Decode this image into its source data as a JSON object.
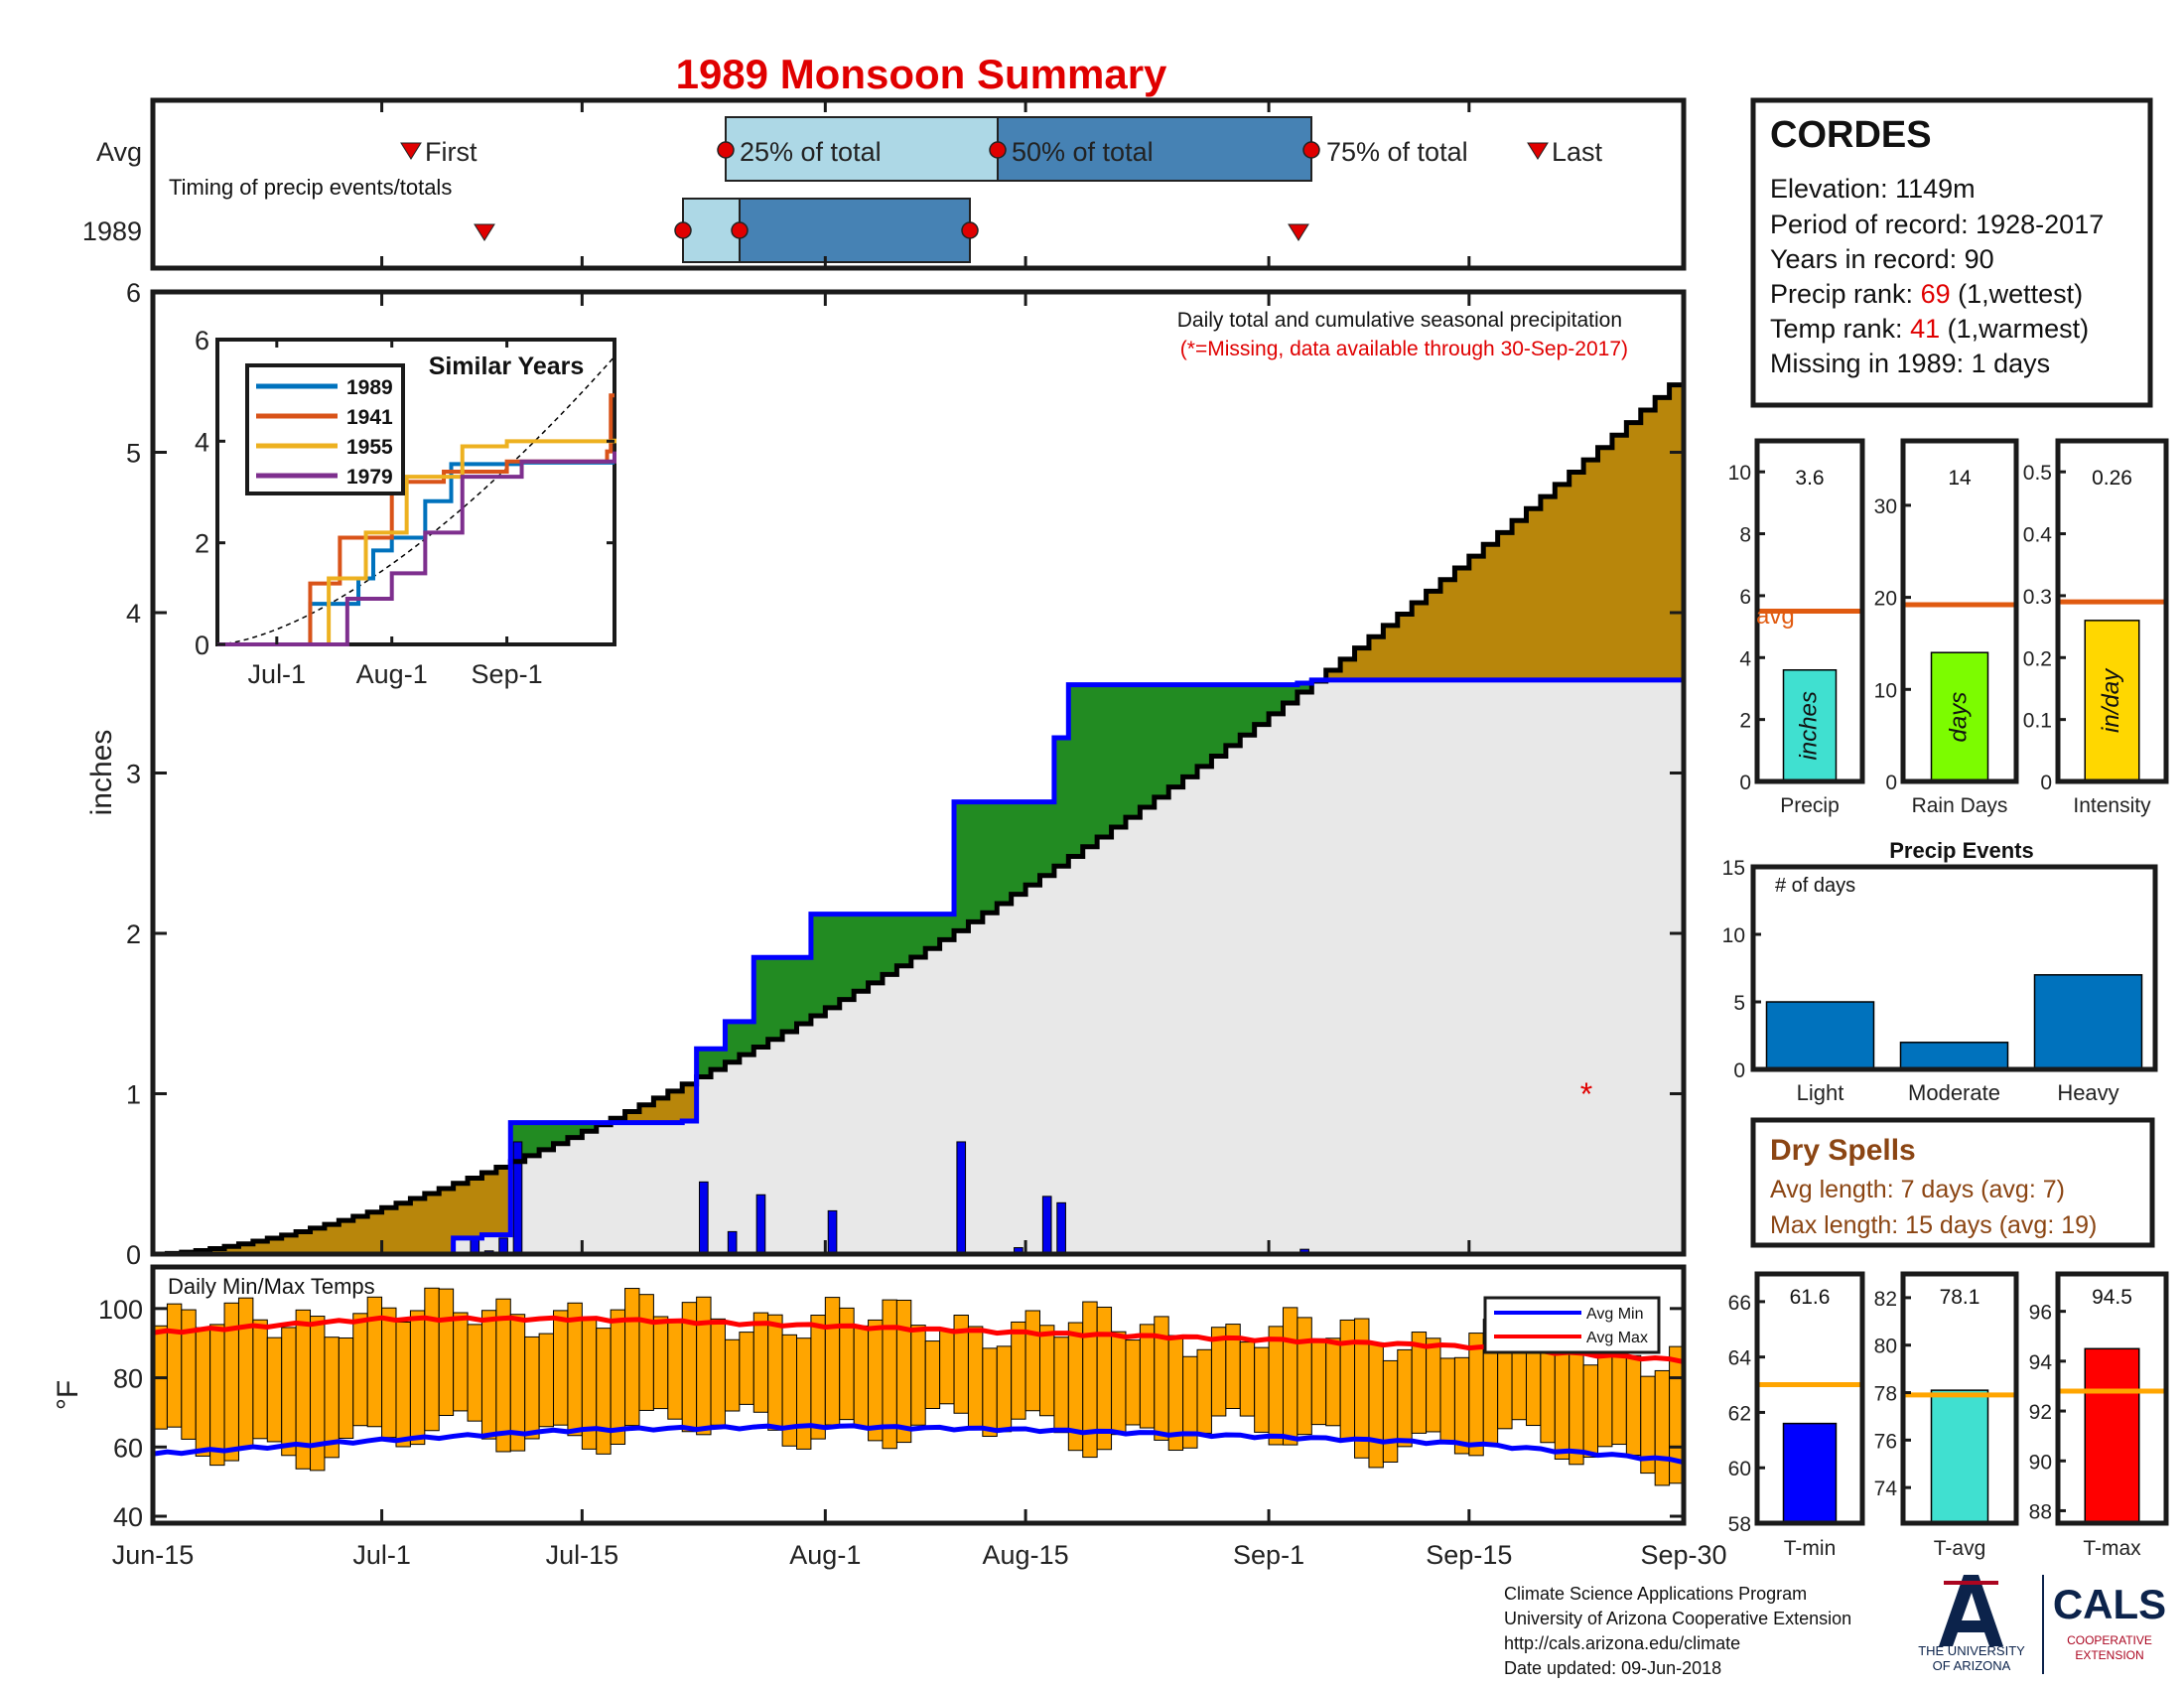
{
  "title": "1989 Monsoon Summary",
  "timing": {
    "rows": [
      "Avg",
      "1989"
    ],
    "note": "Timing of precip events/totals",
    "labels": {
      "first": "First",
      "p25": "25% of total",
      "p50": "50% of total",
      "p75": "75% of total",
      "last": "Last"
    },
    "colors": {
      "light": "#add8e6",
      "dark": "#4682b4",
      "marker": "#e00000"
    }
  },
  "station": {
    "name": "CORDES",
    "elevation_label": "Elevation: ",
    "elevation": "1149m",
    "period_label": "Period of record: ",
    "period": "1928-2017",
    "years_label": "Years in record: ",
    "years": "90",
    "precip_rank_label": "Precip rank: ",
    "precip_rank": "69",
    "precip_rank_note": " (1,wettest)",
    "temp_rank_label": "Temp rank: ",
    "temp_rank": "41",
    "temp_rank_note": " (1,warmest)",
    "missing_label": "Missing in 1989: ",
    "missing": "1 days"
  },
  "main": {
    "ylabel": "inches",
    "note1": "Daily total and cumulative seasonal precipitation",
    "note2": "(*=Missing, data available through 30-Sep-2017)",
    "missing_marker": "*"
  },
  "inset": {
    "title": "Similar Years",
    "legend": [
      {
        "name": "1989",
        "color": "#0072bd"
      },
      {
        "name": "1941",
        "color": "#d95319"
      },
      {
        "name": "1955",
        "color": "#edb120"
      },
      {
        "name": "1979",
        "color": "#7e2f8e"
      }
    ]
  },
  "summary": {
    "avg_label": "avg",
    "precip": {
      "name": "Precip",
      "value_text": "3.6",
      "unit": "inches",
      "color": "#40e0d0"
    },
    "raindays": {
      "name": "Rain Days",
      "value_text": "14",
      "unit": "days",
      "color": "#7cfc00"
    },
    "intensity": {
      "name": "Intensity",
      "value_text": "0.26",
      "unit": "in/day",
      "color": "#ffd700"
    }
  },
  "events": {
    "title": "Precip Events",
    "ylabel": "# of days",
    "color": "#0072bd"
  },
  "dry": {
    "title": "Dry Spells",
    "avg": "Avg length: 7 days (avg: 7)",
    "max": "Max length: 15 days (avg: 19)",
    "color": "#8b4513"
  },
  "temps": {
    "title": "Daily Min/Max Temps",
    "ylabel": "°F",
    "legend": [
      {
        "name": "Avg Min",
        "color": "#0000ff"
      },
      {
        "name": "Avg Max",
        "color": "#ff0000"
      }
    ],
    "bar_color": "#ffa500"
  },
  "tsum": {
    "tmin": {
      "name": "T-min",
      "value_text": "61.6",
      "color": "#0000ff"
    },
    "tavg": {
      "name": "T-avg",
      "value_text": "78.1",
      "color": "#40e0d0"
    },
    "tmax": {
      "name": "T-max",
      "value_text": "94.5",
      "color": "#ff0000"
    },
    "avg_color": "#ffa500"
  },
  "footer": {
    "line1": "Climate Science Applications Program",
    "line2": "University of Arizona Cooperative Extension",
    "line3": "http://cals.arizona.edu/climate",
    "line4": " Date updated: 09-Jun-2018",
    "ua1": "THE UNIVERSITY",
    "ua2": "OF ARIZONA",
    "cals": "CALS",
    "cals_sub1": "COOPERATIVE",
    "cals_sub2": "EXTENSION"
  },
  "chart_data": [
    {
      "type": "line",
      "title": "Daily total and cumulative seasonal precipitation",
      "ylabel": "inches",
      "xlim": [
        "Jun-15",
        "Sep-30"
      ],
      "ylim": [
        0,
        6
      ],
      "x_ticks": [
        "Jun-15",
        "Jul-1",
        "Jul-15",
        "Aug-1",
        "Aug-15",
        "Sep-1",
        "Sep-15",
        "Sep-30"
      ],
      "y_ticks": [
        0,
        1,
        2,
        3,
        4,
        5,
        6
      ],
      "series": [
        {
          "name": "1989",
          "color": "#0000ff",
          "x": [
            "Jun-15",
            "Jul-5",
            "Jul-6",
            "Jul-7",
            "Jul-8",
            "Jul-9",
            "Jul-10",
            "Jul-11",
            "Jul-20",
            "Jul-21",
            "Jul-22",
            "Jul-23",
            "Jul-24",
            "Jul-25",
            "Jul-26",
            "Jul-27",
            "Jul-30",
            "Jul-31",
            "Aug-1",
            "Aug-2",
            "Aug-9",
            "Aug-10",
            "Aug-16",
            "Aug-17",
            "Aug-18",
            "Aug-19",
            "Sep-3",
            "Sep-4",
            "Sep-30"
          ],
          "y": [
            0,
            0,
            0.1,
            0.1,
            0.12,
            0.12,
            0.82,
            0.82,
            0.82,
            0.82,
            0.83,
            1.28,
            1.28,
            1.45,
            1.45,
            1.85,
            1.85,
            2.12,
            2.12,
            2.12,
            2.12,
            2.82,
            2.82,
            3.22,
            3.55,
            3.55,
            3.56,
            3.58,
            3.58
          ]
        }
      ],
      "daily_bars": {
        "x": [
          "Jul-7",
          "Jul-8",
          "Jul-9",
          "Jul-10",
          "Jul-23",
          "Jul-25",
          "Jul-27",
          "Aug-1",
          "Aug-10",
          "Aug-14",
          "Aug-16",
          "Aug-17",
          "Sep-3"
        ],
        "y": [
          0.1,
          0.02,
          0.1,
          0.7,
          0.45,
          0.14,
          0.37,
          0.27,
          0.7,
          0.04,
          0.36,
          0.32,
          0.03
        ]
      }
    },
    {
      "type": "line",
      "title": "Similar Years",
      "x_ticks": [
        "Jul-1",
        "Aug-1",
        "Sep-1"
      ],
      "y_ticks": [
        0,
        2,
        4,
        6
      ],
      "series": [
        {
          "name": "1989",
          "x": [
            "Jun-15",
            "Jul-5",
            "Jul-10",
            "Jul-23",
            "Jul-27",
            "Aug-1",
            "Aug-10",
            "Aug-17",
            "Sep-4",
            "Sep-30"
          ],
          "y": [
            0,
            0,
            0.8,
            1.3,
            1.85,
            2.1,
            2.82,
            3.55,
            3.58,
            3.58
          ]
        },
        {
          "name": "1941",
          "x": [
            "Jun-15",
            "Jul-3",
            "Jul-10",
            "Jul-18",
            "Aug-1",
            "Aug-15",
            "Sep-1",
            "Sep-28",
            "Sep-29",
            "Sep-30"
          ],
          "y": [
            0,
            0,
            1.2,
            2.1,
            3.2,
            3.4,
            3.6,
            3.8,
            4.9,
            4.9
          ]
        },
        {
          "name": "1955",
          "x": [
            "Jun-15",
            "Jul-8",
            "Jul-15",
            "Jul-25",
            "Aug-5",
            "Aug-20",
            "Sep-1",
            "Sep-30"
          ],
          "y": [
            0,
            0,
            1.3,
            2.2,
            3.3,
            3.9,
            4.0,
            4.05
          ]
        },
        {
          "name": "1979",
          "x": [
            "Jun-15",
            "Jul-12",
            "Jul-20",
            "Aug-1",
            "Aug-10",
            "Aug-20",
            "Sep-5",
            "Sep-30"
          ],
          "y": [
            0,
            0,
            0.9,
            1.4,
            2.2,
            3.3,
            3.6,
            3.8
          ]
        }
      ]
    },
    {
      "type": "bar",
      "title": "Precip Events",
      "ylabel": "# of days",
      "categories": [
        "Light",
        "Moderate",
        "Heavy"
      ],
      "values": [
        5,
        2,
        7
      ],
      "ylim": [
        0,
        15
      ]
    },
    {
      "type": "bar",
      "categories": [
        "Precip",
        "Rain Days",
        "Intensity"
      ],
      "series": [
        {
          "name": "1989",
          "values": [
            3.6,
            14,
            0.26
          ]
        },
        {
          "name": "avg",
          "values": [
            5.5,
            19.2,
            0.29
          ]
        }
      ],
      "ylims": [
        [
          0,
          11
        ],
        [
          0,
          37
        ],
        [
          0,
          0.55
        ]
      ]
    },
    {
      "type": "bar",
      "title": "Daily Min/Max Temps",
      "ylabel": "°F",
      "ylim": [
        38,
        112
      ],
      "y_ticks": [
        40,
        60,
        80,
        100
      ],
      "avg_min": {
        "x": [
          "Jun-15",
          "Jul-1",
          "Jul-15",
          "Aug-1",
          "Aug-15",
          "Sep-1",
          "Sep-15",
          "Sep-30"
        ],
        "y": [
          58,
          62,
          65,
          66,
          65,
          63,
          61,
          56
        ]
      },
      "avg_max": {
        "x": [
          "Jun-15",
          "Jul-1",
          "Jul-15",
          "Aug-1",
          "Aug-15",
          "Sep-1",
          "Sep-15",
          "Sep-30"
        ],
        "y": [
          93,
          97,
          97,
          95,
          93,
          91,
          89,
          85
        ]
      }
    },
    {
      "type": "bar",
      "categories": [
        "T-min",
        "T-avg",
        "T-max"
      ],
      "series": [
        {
          "name": "1989",
          "values": [
            61.6,
            78.1,
            94.5
          ]
        },
        {
          "name": "avg",
          "values": [
            63.0,
            77.9,
            92.8
          ]
        }
      ],
      "ylims": [
        [
          58,
          67
        ],
        [
          72.5,
          83
        ],
        [
          87.5,
          97.5
        ]
      ]
    }
  ]
}
